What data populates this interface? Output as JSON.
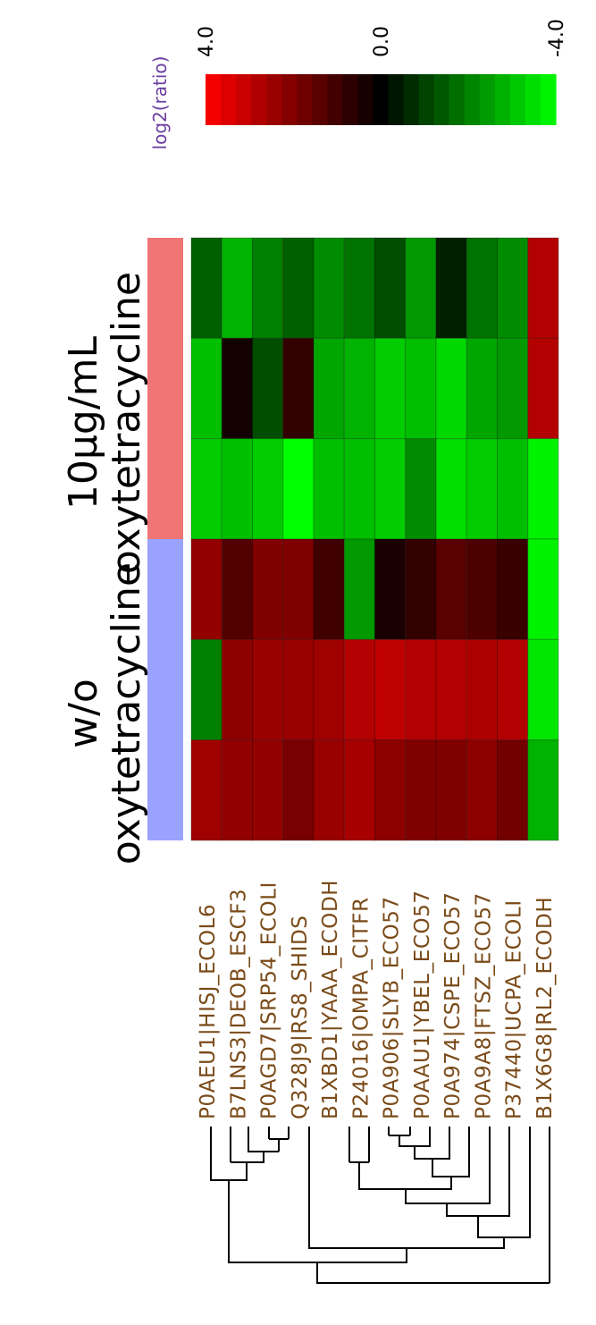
{
  "chart_data": {
    "type": "heatmap",
    "orientation": "rotated-90",
    "scale": {
      "title": "log2(ratio)",
      "ticks": [
        "4.0",
        "0.0",
        "-4.0"
      ],
      "min": -4.0,
      "max": 4.0,
      "colors": {
        "high": "#ff0000",
        "mid": "#000000",
        "low": "#00ff00"
      }
    },
    "groups": [
      {
        "label_lines": [
          "10μg/mL",
          "oxytetracycline"
        ],
        "color": "#f07575",
        "columns": 3
      },
      {
        "label_lines": [
          "w/o",
          "oxytetracycline"
        ],
        "color": "#9aa2ff",
        "columns": 3
      }
    ],
    "genes": [
      "P0AEU1|HISJ_ECOL6",
      "B7LNS3|DEOB_ESCF3",
      "P0AGD7|SRP54_ECOLI",
      "Q328J9|RS8_SHIDS",
      "B1XBD1|YAAA_ECODH",
      "P24016|OMPA_CITFR",
      "P0A906|SLYB_ECO57",
      "P0AAU1|YBEL_ECO57",
      "P0A974|CSPE_ECO57",
      "P0A9A8|FTSZ_ECO57",
      "P37440|UCPA_ECOLI",
      "B1X6G8|RL2_ECODH"
    ],
    "values": [
      [
        -1.5,
        -2.8,
        -2.0,
        -1.5,
        -2.2,
        -1.8,
        -1.2,
        -2.4,
        -0.5,
        -1.8,
        -2.2,
        2.8
      ],
      [
        -3.0,
        0.3,
        -1.2,
        0.8,
        -2.6,
        -2.8,
        -3.2,
        -3.0,
        -3.4,
        -2.6,
        -2.4,
        2.8
      ],
      [
        -3.2,
        -3.0,
        -3.2,
        -4.0,
        -3.0,
        -3.0,
        -3.2,
        -2.2,
        -3.5,
        -3.2,
        -3.0,
        -3.8
      ],
      [
        2.3,
        1.3,
        2.0,
        2.0,
        1.0,
        -2.4,
        0.4,
        0.8,
        1.4,
        1.2,
        0.9,
        -3.8
      ],
      [
        -2.0,
        2.2,
        2.4,
        2.4,
        2.5,
        2.8,
        3.0,
        2.8,
        2.8,
        2.7,
        2.8,
        -3.6
      ],
      [
        2.5,
        2.3,
        2.3,
        1.9,
        2.4,
        2.6,
        2.2,
        2.0,
        2.0,
        2.2,
        1.8,
        -2.8
      ]
    ]
  }
}
